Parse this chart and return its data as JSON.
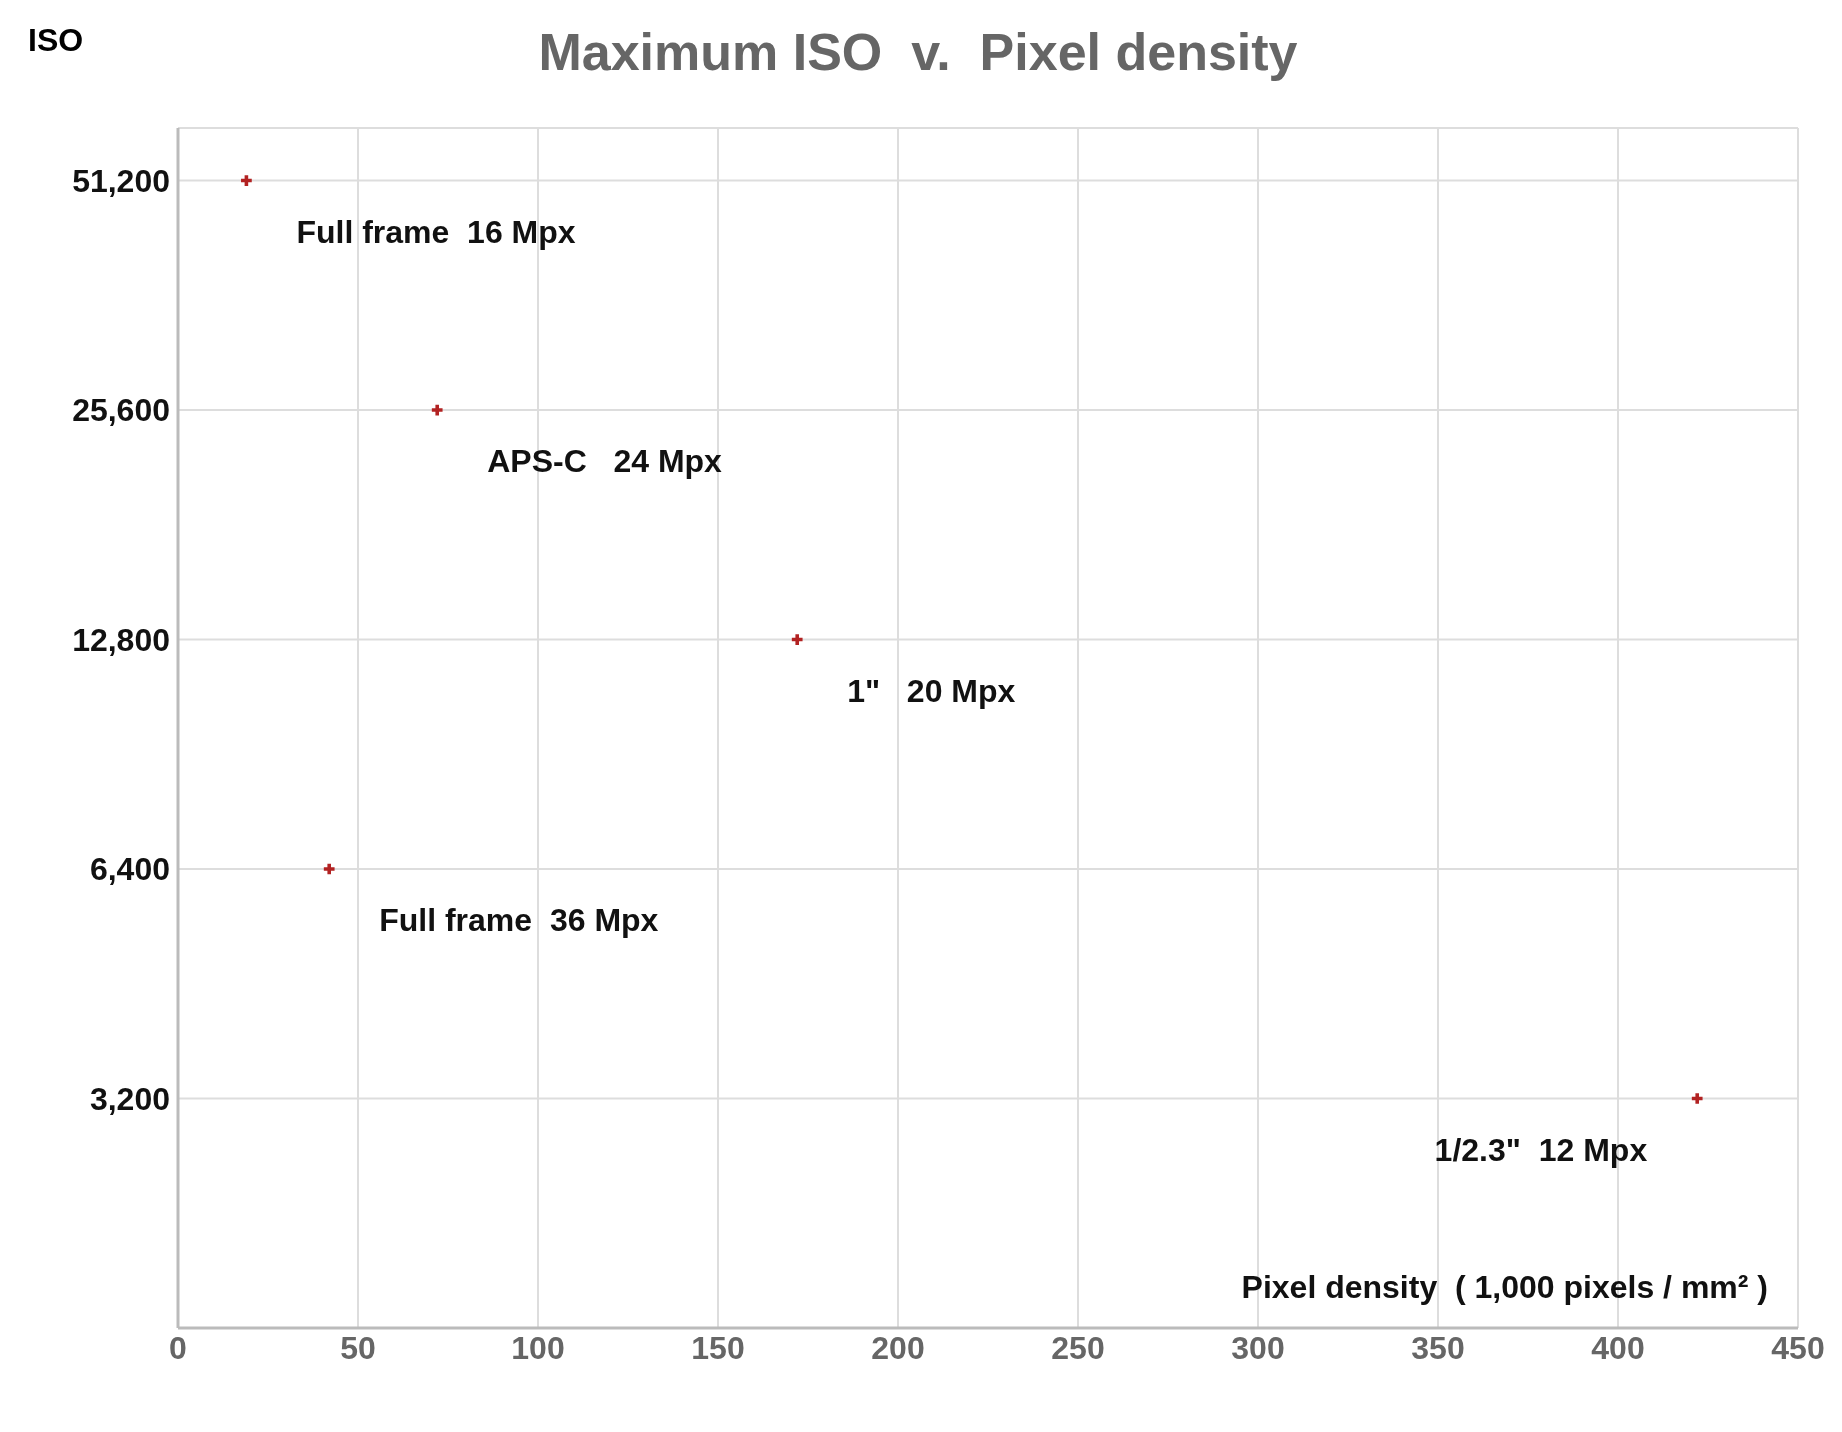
{
  "chart_data": {
    "type": "scatter",
    "title": "Maximum ISO  v.  Pixel density",
    "xlabel": "Pixel density  ( 1,000 pixels / mm² )",
    "ylabel": "ISO",
    "x": [
      19,
      72,
      172,
      42,
      422
    ],
    "series": [
      {
        "color": "#b22222",
        "values": [
          51200,
          25600,
          12800,
          6400,
          3200
        ]
      }
    ],
    "xlim": [
      0,
      450
    ],
    "xticks": [
      0,
      50,
      100,
      150,
      200,
      250,
      300,
      350,
      400,
      450
    ],
    "ylim": [
      1600,
      60000
    ],
    "log": "y",
    "yticks": [
      {
        "value": 3200,
        "label": "3,200"
      },
      {
        "value": 6400,
        "label": "6,400"
      },
      {
        "value": 12800,
        "label": "12,800"
      },
      {
        "value": 25600,
        "label": "25,600"
      },
      {
        "value": 51200,
        "label": "51,200"
      }
    ],
    "grid": true,
    "marker": "cross",
    "legend": false,
    "annotations": [
      {
        "text": "Full frame  16 Mpx",
        "x": 19,
        "y": 51200
      },
      {
        "text": "APS-C   24 Mpx",
        "x": 72,
        "y": 25600
      },
      {
        "text": "1\"   20 Mpx",
        "x": 172,
        "y": 12800
      },
      {
        "text": "Full frame  36 Mpx",
        "x": 42,
        "y": 6400
      },
      {
        "text": "1/2.3\"  12 Mpx",
        "x": 422,
        "y": 3200
      }
    ]
  }
}
